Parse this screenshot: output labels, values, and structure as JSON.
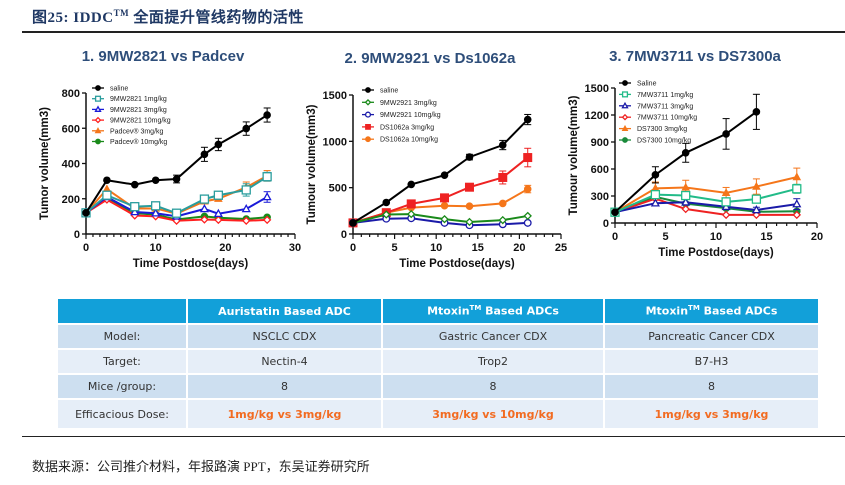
{
  "figure": {
    "title_prefix": "图25:  IDDC",
    "title_tm": "TM",
    "title_suffix": "全面提升管线药物的活性",
    "source": "数据来源：公司推介材料，年报路演 PPT，东吴证券研究所"
  },
  "chart_data": [
    {
      "type": "line",
      "title": "1. 9MW2821 vs Padcev",
      "xlabel": "Time Postdose(days)",
      "ylabel": "Tumor volume(mm3)",
      "xlim": [
        0,
        30
      ],
      "ylim": [
        0,
        800
      ],
      "xticks": [
        0,
        10,
        20,
        30
      ],
      "yticks": [
        0,
        200,
        400,
        600,
        800
      ],
      "legend": "top-left",
      "series": [
        {
          "name": "saline",
          "color": "#000000",
          "marker": "circle-filled",
          "x": [
            0,
            3,
            7,
            10,
            13,
            17,
            19,
            23,
            26
          ],
          "y": [
            120,
            305,
            280,
            305,
            312,
            452,
            508,
            598,
            675
          ],
          "err": [
            0,
            0,
            0,
            0,
            22,
            40,
            35,
            38,
            40
          ]
        },
        {
          "name": "9MW2821 1mg/kg",
          "color": "#2a9d9d",
          "marker": "square-open",
          "x": [
            0,
            3,
            7,
            10,
            13,
            17,
            19,
            23,
            26
          ],
          "y": [
            120,
            220,
            155,
            160,
            118,
            198,
            220,
            250,
            325
          ],
          "err": [
            0,
            0,
            0,
            0,
            0,
            0,
            0,
            35,
            25
          ]
        },
        {
          "name": "9MW2821 3mg/kg",
          "color": "#1a1ad8",
          "marker": "triangle-open",
          "x": [
            0,
            3,
            7,
            10,
            13,
            17,
            19,
            23,
            26
          ],
          "y": [
            120,
            210,
            125,
            118,
            100,
            142,
            115,
            142,
            210
          ],
          "err": [
            0,
            0,
            0,
            0,
            0,
            0,
            0,
            0,
            30
          ]
        },
        {
          "name": "9MW2821 10mg/kg",
          "color": "#ff2020",
          "marker": "diamond-open",
          "x": [
            0,
            3,
            7,
            10,
            13,
            17,
            19,
            23,
            26
          ],
          "y": [
            120,
            195,
            105,
            100,
            75,
            82,
            80,
            75,
            80
          ],
          "err": [
            0,
            0,
            0,
            0,
            0,
            0,
            0,
            0,
            0
          ]
        },
        {
          "name": "Padcev® 3mg/kg",
          "color": "#f5761a",
          "marker": "triangle-filled",
          "x": [
            0,
            3,
            7,
            10,
            13,
            17,
            19,
            23,
            26
          ],
          "y": [
            120,
            255,
            145,
            145,
            115,
            185,
            200,
            265,
            330
          ],
          "err": [
            0,
            0,
            0,
            0,
            0,
            0,
            0,
            30,
            30
          ]
        },
        {
          "name": "Padcev® 10mg/kg",
          "color": "#1a8a1a",
          "marker": "circle-filled",
          "x": [
            0,
            3,
            7,
            10,
            13,
            17,
            19,
            23,
            26
          ],
          "y": [
            120,
            205,
            118,
            110,
            82,
            100,
            92,
            85,
            95
          ],
          "err": [
            0,
            0,
            0,
            0,
            0,
            0,
            0,
            0,
            0
          ]
        }
      ]
    },
    {
      "type": "line",
      "title": "2. 9MW2921 vs Ds1062a",
      "xlabel": "Time Postdose(days)",
      "ylabel": "Tumour volume(mm3)",
      "xlim": [
        0,
        25
      ],
      "ylim": [
        0,
        1500
      ],
      "xticks": [
        0,
        5,
        10,
        15,
        20,
        25
      ],
      "yticks": [
        0,
        500,
        1000,
        1500
      ],
      "legend": "top-left",
      "series": [
        {
          "name": "saline",
          "color": "#000000",
          "marker": "circle-filled",
          "x": [
            0,
            4,
            7,
            11,
            14,
            18,
            21
          ],
          "y": [
            120,
            340,
            535,
            635,
            830,
            960,
            1235
          ],
          "err": [
            0,
            0,
            0,
            0,
            30,
            50,
            55
          ]
        },
        {
          "name": "9MW2921 3mg/kg",
          "color": "#1a8a1a",
          "marker": "diamond-open",
          "x": [
            0,
            4,
            7,
            11,
            14,
            18,
            21
          ],
          "y": [
            120,
            210,
            215,
            160,
            130,
            150,
            195
          ],
          "err": [
            0,
            0,
            0,
            0,
            0,
            0,
            0
          ]
        },
        {
          "name": "9MW2921 10mg/kg",
          "color": "#1a1aa8",
          "marker": "circle-open",
          "x": [
            0,
            4,
            7,
            11,
            14,
            18,
            21
          ],
          "y": [
            120,
            165,
            170,
            120,
            95,
            105,
            120
          ],
          "err": [
            0,
            0,
            0,
            0,
            0,
            0,
            0
          ]
        },
        {
          "name": "DS1062a 3mg/kg",
          "color": "#ee2222",
          "marker": "square-filled",
          "x": [
            0,
            4,
            7,
            11,
            14,
            18,
            21
          ],
          "y": [
            120,
            230,
            325,
            390,
            505,
            610,
            825
          ],
          "err": [
            0,
            0,
            0,
            0,
            0,
            70,
            100
          ]
        },
        {
          "name": "DS1062a 10mg/kg",
          "color": "#f5761a",
          "marker": "circle-filled",
          "x": [
            0,
            4,
            7,
            11,
            14,
            18,
            21
          ],
          "y": [
            120,
            230,
            285,
            305,
            300,
            330,
            485
          ],
          "err": [
            0,
            0,
            0,
            0,
            0,
            0,
            40
          ]
        }
      ]
    },
    {
      "type": "line",
      "title": "3. 7MW3711 vs DS7300a",
      "xlabel": "Time Postdose(days)",
      "ylabel": "Tumour volume(mm3)",
      "xlim": [
        0,
        20
      ],
      "ylim": [
        0,
        1500
      ],
      "xticks": [
        0,
        5,
        10,
        15,
        20
      ],
      "yticks": [
        0,
        300,
        600,
        900,
        1200,
        1500
      ],
      "legend": "top-left",
      "series": [
        {
          "name": "Saline",
          "color": "#000000",
          "marker": "circle-filled",
          "x": [
            0,
            4,
            7,
            11,
            14
          ],
          "y": [
            120,
            535,
            780,
            990,
            1235
          ],
          "err": [
            0,
            90,
            105,
            170,
            195
          ]
        },
        {
          "name": "7MW3711 1mg/kg",
          "color": "#22bb88",
          "marker": "square-open",
          "x": [
            0,
            4,
            7,
            11,
            14,
            18
          ],
          "y": [
            120,
            315,
            305,
            235,
            265,
            380
          ],
          "err": [
            0,
            0,
            0,
            0,
            0,
            50
          ]
        },
        {
          "name": "7MW3711 3mg/kg",
          "color": "#1a1aa8",
          "marker": "triangle-open",
          "x": [
            0,
            4,
            7,
            11,
            14,
            18
          ],
          "y": [
            120,
            220,
            230,
            180,
            145,
            210
          ],
          "err": [
            0,
            0,
            0,
            0,
            30,
            60
          ]
        },
        {
          "name": "7MW3711 10mg/kg",
          "color": "#ee2222",
          "marker": "diamond-open",
          "x": [
            0,
            4,
            7,
            11,
            14,
            18
          ],
          "y": [
            120,
            270,
            155,
            90,
            90,
            90
          ],
          "err": [
            0,
            0,
            0,
            0,
            0,
            0
          ]
        },
        {
          "name": "DS7300 3mg/kg",
          "color": "#f5761a",
          "marker": "triangle-filled",
          "x": [
            0,
            4,
            7,
            11,
            14,
            18
          ],
          "y": [
            120,
            385,
            395,
            335,
            405,
            510
          ],
          "err": [
            0,
            70,
            80,
            60,
            85,
            100
          ]
        },
        {
          "name": "DS7300 10mg/kg",
          "color": "#1a8a3a",
          "marker": "circle-filled",
          "x": [
            0,
            4,
            7,
            11,
            14,
            18
          ],
          "y": [
            120,
            290,
            215,
            165,
            125,
            130
          ],
          "err": [
            0,
            0,
            0,
            0,
            0,
            0
          ]
        }
      ]
    }
  ],
  "table": {
    "headers": [
      "",
      "Auristatin Based ADC",
      "Mtoxin",
      "Mtoxin"
    ],
    "header_tm": "TM",
    "header_suffix": " Based ADCs",
    "rows": [
      {
        "label": "Model:",
        "values": [
          "NSCLC CDX",
          "Gastric  Cancer CDX",
          "Pancreatic Cancer  CDX"
        ]
      },
      {
        "label": "Target:",
        "values": [
          "Nectin-4",
          "Trop2",
          "B7-H3"
        ]
      },
      {
        "label": "Mice /group:",
        "values": [
          "8",
          "8",
          "8"
        ]
      },
      {
        "label": "Efficacious Dose:",
        "values": [
          "1mg/kg vs 3mg/kg",
          "3mg/kg vs 10mg/kg",
          "1mg/kg vs 3mg/kg"
        ]
      }
    ],
    "colors": {
      "header_bg": "#12a0d9",
      "dose_text": "#f26b21"
    }
  }
}
